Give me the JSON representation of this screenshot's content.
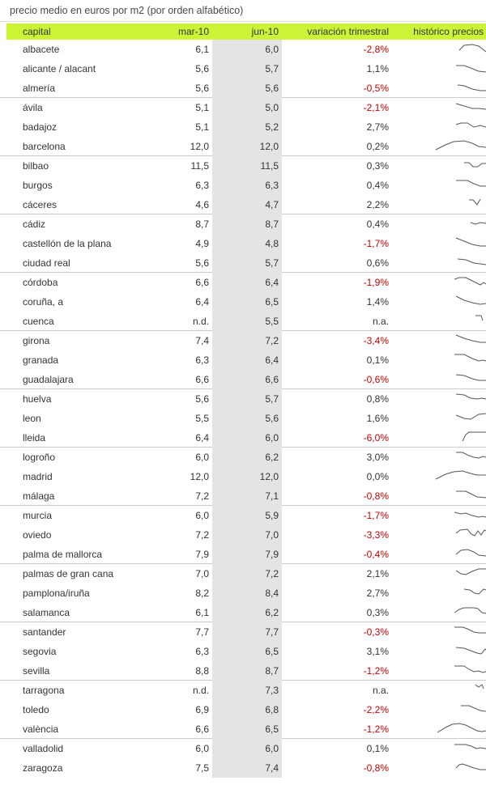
{
  "title": "precio medio en euros por m2 (por orden alfabético)",
  "colors": {
    "header_bg": "#ccf437",
    "stripe": "#e4e4e4",
    "negative": "#cc0000",
    "separator": "#cccccc",
    "spark": "#555555",
    "text": "#333333"
  },
  "chart_data": {
    "type": "table",
    "title": "precio medio en euros por m2 (por orden alfabético)",
    "columns": [
      "capital",
      "mar-10",
      "jun-10",
      "variación trimestral",
      "histórico precios"
    ],
    "group_size": 3,
    "rows": [
      {
        "capital": "albacete",
        "mar10": "6,1",
        "jun10": "6,0",
        "variacion": "-2,8%",
        "spark": [
          [
            62,
            13
          ],
          [
            68,
            7
          ],
          [
            78,
            6
          ],
          [
            86,
            8
          ],
          [
            95,
            15
          ]
        ]
      },
      {
        "capital": "alicante / alacant",
        "mar10": "5,6",
        "jun10": "5,7",
        "variacion": "1,1%",
        "spark": [
          [
            58,
            8
          ],
          [
            68,
            8
          ],
          [
            76,
            11
          ],
          [
            86,
            15
          ],
          [
            95,
            16
          ]
        ]
      },
      {
        "capital": "almería",
        "mar10": "5,6",
        "jun10": "5,6",
        "variacion": "-0,5%",
        "spark": [
          [
            60,
            8
          ],
          [
            68,
            9
          ],
          [
            78,
            13
          ],
          [
            88,
            15
          ],
          [
            95,
            15
          ]
        ]
      },
      {
        "capital": "ávila",
        "mar10": "5,1",
        "jun10": "5,0",
        "variacion": "-2,1%",
        "spark": [
          [
            58,
            7
          ],
          [
            68,
            10
          ],
          [
            78,
            13
          ],
          [
            86,
            13
          ],
          [
            95,
            14
          ]
        ]
      },
      {
        "capital": "badajoz",
        "mar10": "5,1",
        "jun10": "5,2",
        "variacion": "2,7%",
        "spark": [
          [
            58,
            9
          ],
          [
            64,
            7
          ],
          [
            72,
            7
          ],
          [
            80,
            12
          ],
          [
            88,
            10
          ],
          [
            95,
            12
          ]
        ]
      },
      {
        "capital": "barcelona",
        "mar10": "12,0",
        "jun10": "12,0",
        "variacion": "0,2%",
        "spark": [
          [
            33,
            16
          ],
          [
            45,
            10
          ],
          [
            55,
            6
          ],
          [
            68,
            5
          ],
          [
            78,
            8
          ],
          [
            86,
            12
          ],
          [
            95,
            13
          ]
        ]
      },
      {
        "capital": "bilbao",
        "mar10": "11,5",
        "jun10": "11,5",
        "variacion": "0,3%",
        "spark": [
          [
            68,
            8
          ],
          [
            74,
            8
          ],
          [
            79,
            13
          ],
          [
            85,
            13
          ],
          [
            90,
            9
          ],
          [
            95,
            9
          ]
        ]
      },
      {
        "capital": "burgos",
        "mar10": "6,3",
        "jun10": "6,3",
        "variacion": "0,4%",
        "spark": [
          [
            58,
            6
          ],
          [
            72,
            6
          ],
          [
            80,
            10
          ],
          [
            88,
            13
          ],
          [
            95,
            13
          ]
        ]
      },
      {
        "capital": "cáceres",
        "mar10": "4,6",
        "jun10": "4,7",
        "variacion": "2,2%",
        "spark": [
          [
            74,
            6
          ],
          [
            79,
            6
          ],
          [
            84,
            12
          ],
          [
            88,
            5
          ]
        ]
      },
      {
        "capital": "cádiz",
        "mar10": "8,7",
        "jun10": "8,7",
        "variacion": "0,4%",
        "spark": [
          [
            76,
            10
          ],
          [
            82,
            12
          ],
          [
            88,
            10
          ],
          [
            95,
            11
          ]
        ]
      },
      {
        "capital": "castellón de la plana",
        "mar10": "4,9",
        "jun10": "4,8",
        "variacion": "-1,7%",
        "spark": [
          [
            58,
            5
          ],
          [
            68,
            9
          ],
          [
            78,
            13
          ],
          [
            88,
            15
          ],
          [
            95,
            15
          ]
        ]
      },
      {
        "capital": "ciudad real",
        "mar10": "5,6",
        "jun10": "5,7",
        "variacion": "0,6%",
        "spark": [
          [
            60,
            7
          ],
          [
            70,
            8
          ],
          [
            80,
            12
          ],
          [
            88,
            13
          ],
          [
            95,
            14
          ]
        ]
      },
      {
        "capital": "córdoba",
        "mar10": "6,6",
        "jun10": "6,4",
        "variacion": "-1,9%",
        "spark": [
          [
            56,
            8
          ],
          [
            62,
            6
          ],
          [
            70,
            6
          ],
          [
            78,
            10
          ],
          [
            84,
            13
          ],
          [
            88,
            15
          ],
          [
            92,
            12
          ],
          [
            95,
            14
          ]
        ]
      },
      {
        "capital": "coruña, a",
        "mar10": "6,4",
        "jun10": "6,5",
        "variacion": "1,4%",
        "spark": [
          [
            58,
            5
          ],
          [
            68,
            10
          ],
          [
            78,
            13
          ],
          [
            88,
            15
          ],
          [
            95,
            14
          ]
        ]
      },
      {
        "capital": "cuenca",
        "mar10": "n.d.",
        "jun10": "5,5",
        "variacion": "n.a.",
        "spark": [
          [
            82,
            5
          ],
          [
            89,
            5
          ],
          [
            91,
            11
          ]
        ]
      },
      {
        "capital": "girona",
        "mar10": "7,4",
        "jun10": "7,2",
        "variacion": "-3,4%",
        "spark": [
          [
            58,
            5
          ],
          [
            68,
            9
          ],
          [
            78,
            12
          ],
          [
            88,
            14
          ],
          [
            95,
            14
          ]
        ]
      },
      {
        "capital": "granada",
        "mar10": "6,3",
        "jun10": "6,4",
        "variacion": "0,1%",
        "spark": [
          [
            56,
            5
          ],
          [
            68,
            5
          ],
          [
            78,
            10
          ],
          [
            86,
            13
          ],
          [
            91,
            12
          ],
          [
            95,
            13
          ]
        ]
      },
      {
        "capital": "guadalajara",
        "mar10": "6,6",
        "jun10": "6,6",
        "variacion": "-0,6%",
        "spark": [
          [
            58,
            6
          ],
          [
            68,
            7
          ],
          [
            78,
            11
          ],
          [
            86,
            13
          ],
          [
            95,
            13
          ]
        ]
      },
      {
        "capital": "huelva",
        "mar10": "5,6",
        "jun10": "5,7",
        "variacion": "0,8%",
        "spark": [
          [
            58,
            6
          ],
          [
            68,
            7
          ],
          [
            76,
            11
          ],
          [
            84,
            12
          ],
          [
            90,
            11
          ],
          [
            95,
            12
          ]
        ]
      },
      {
        "capital": "leon",
        "mar10": "5,5",
        "jun10": "5,6",
        "variacion": "1,6%",
        "spark": [
          [
            58,
            8
          ],
          [
            68,
            12
          ],
          [
            76,
            13
          ],
          [
            86,
            7
          ],
          [
            95,
            6
          ]
        ]
      },
      {
        "capital": "lleida",
        "mar10": "6,4",
        "jun10": "6,0",
        "variacion": "-6,0%",
        "spark": [
          [
            66,
            16
          ],
          [
            70,
            8
          ],
          [
            74,
            5
          ],
          [
            95,
            5
          ]
        ]
      },
      {
        "capital": "logroño",
        "mar10": "6,0",
        "jun10": "6,2",
        "variacion": "3,0%",
        "spark": [
          [
            58,
            6
          ],
          [
            66,
            6
          ],
          [
            74,
            10
          ],
          [
            80,
            12
          ],
          [
            86,
            13
          ],
          [
            91,
            11
          ],
          [
            95,
            12
          ]
        ]
      },
      {
        "capital": "madrid",
        "mar10": "12,0",
        "jun10": "12,0",
        "variacion": "0,0%",
        "spark": [
          [
            33,
            15
          ],
          [
            45,
            9
          ],
          [
            55,
            6
          ],
          [
            66,
            5
          ],
          [
            76,
            8
          ],
          [
            84,
            10
          ],
          [
            95,
            10
          ]
        ]
      },
      {
        "capital": "málaga",
        "mar10": "7,2",
        "jun10": "7,1",
        "variacion": "-0,8%",
        "spark": [
          [
            58,
            6
          ],
          [
            70,
            6
          ],
          [
            78,
            10
          ],
          [
            84,
            13
          ],
          [
            95,
            14
          ]
        ]
      },
      {
        "capital": "murcia",
        "mar10": "6,0",
        "jun10": "5,9",
        "variacion": "-1,7%",
        "spark": [
          [
            56,
            8
          ],
          [
            64,
            10
          ],
          [
            70,
            9
          ],
          [
            78,
            12
          ],
          [
            86,
            14
          ],
          [
            91,
            13
          ],
          [
            95,
            14
          ]
        ]
      },
      {
        "capital": "oviedo",
        "mar10": "7,2",
        "jun10": "7,0",
        "variacion": "-3,3%",
        "spark": [
          [
            58,
            10
          ],
          [
            63,
            6
          ],
          [
            72,
            5
          ],
          [
            77,
            11
          ],
          [
            81,
            13
          ],
          [
            85,
            7
          ],
          [
            89,
            12
          ],
          [
            93,
            6
          ],
          [
            95,
            7
          ]
        ]
      },
      {
        "capital": "palma de mallorca",
        "mar10": "7,9",
        "jun10": "7,9",
        "variacion": "-0,4%",
        "spark": [
          [
            58,
            12
          ],
          [
            64,
            7
          ],
          [
            72,
            6
          ],
          [
            80,
            9
          ],
          [
            86,
            13
          ],
          [
            95,
            14
          ]
        ]
      },
      {
        "capital": "palmas de gran cana",
        "mar10": "7,0",
        "jun10": "7,2",
        "variacion": "2,1%",
        "spark": [
          [
            58,
            8
          ],
          [
            64,
            12
          ],
          [
            70,
            13
          ],
          [
            78,
            9
          ],
          [
            86,
            6
          ],
          [
            95,
            6
          ]
        ]
      },
      {
        "capital": "pamplona/iruña",
        "mar10": "8,2",
        "jun10": "8,4",
        "variacion": "2,7%",
        "spark": [
          [
            68,
            7
          ],
          [
            75,
            8
          ],
          [
            81,
            12
          ],
          [
            86,
            13
          ],
          [
            92,
            7
          ],
          [
            95,
            8
          ]
        ]
      },
      {
        "capital": "salamanca",
        "mar10": "6,1",
        "jun10": "6,2",
        "variacion": "0,3%",
        "spark": [
          [
            56,
            12
          ],
          [
            62,
            8
          ],
          [
            68,
            6
          ],
          [
            80,
            6
          ],
          [
            85,
            7
          ],
          [
            90,
            12
          ],
          [
            95,
            13
          ]
        ]
      },
      {
        "capital": "santander",
        "mar10": "7,7",
        "jun10": "7,7",
        "variacion": "-0,3%",
        "spark": [
          [
            56,
            6
          ],
          [
            66,
            6
          ],
          [
            72,
            8
          ],
          [
            80,
            12
          ],
          [
            86,
            13
          ],
          [
            95,
            13
          ]
        ]
      },
      {
        "capital": "segovia",
        "mar10": "6,3",
        "jun10": "6,5",
        "variacion": "3,1%",
        "spark": [
          [
            58,
            7
          ],
          [
            68,
            8
          ],
          [
            76,
            11
          ],
          [
            84,
            14
          ],
          [
            89,
            15
          ],
          [
            94,
            9
          ],
          [
            95,
            10
          ]
        ]
      },
      {
        "capital": "sevilla",
        "mar10": "8,8",
        "jun10": "8,7",
        "variacion": "-1,2%",
        "spark": [
          [
            56,
            6
          ],
          [
            68,
            6
          ],
          [
            74,
            10
          ],
          [
            80,
            13
          ],
          [
            86,
            12
          ],
          [
            91,
            14
          ],
          [
            95,
            13
          ]
        ]
      },
      {
        "capital": "tarragona",
        "mar10": "n.d.",
        "jun10": "7,3",
        "variacion": "n.a.",
        "spark": [
          [
            82,
            5
          ],
          [
            86,
            8
          ],
          [
            90,
            5
          ],
          [
            92,
            10
          ]
        ]
      },
      {
        "capital": "toledo",
        "mar10": "6,9",
        "jun10": "6,8",
        "variacion": "-2,2%",
        "spark": [
          [
            64,
            7
          ],
          [
            74,
            7
          ],
          [
            81,
            10
          ],
          [
            88,
            13
          ],
          [
            95,
            14
          ]
        ]
      },
      {
        "capital": "valència",
        "mar10": "6,6",
        "jun10": "6,5",
        "variacion": "-1,2%",
        "spark": [
          [
            35,
            16
          ],
          [
            45,
            10
          ],
          [
            53,
            6
          ],
          [
            62,
            5
          ],
          [
            70,
            7
          ],
          [
            78,
            11
          ],
          [
            84,
            14
          ],
          [
            90,
            15
          ],
          [
            95,
            14
          ]
        ]
      },
      {
        "capital": "valladolid",
        "mar10": "6,0",
        "jun10": "6,0",
        "variacion": "0,1%",
        "spark": [
          [
            56,
            7
          ],
          [
            70,
            7
          ],
          [
            77,
            9
          ],
          [
            83,
            12
          ],
          [
            88,
            11
          ],
          [
            95,
            12
          ]
        ]
      },
      {
        "capital": "zaragoza",
        "mar10": "7,5",
        "jun10": "7,4",
        "variacion": "-0,8%",
        "spark": [
          [
            58,
            12
          ],
          [
            62,
            8
          ],
          [
            66,
            7
          ],
          [
            72,
            9
          ],
          [
            80,
            12
          ],
          [
            88,
            14
          ],
          [
            95,
            14
          ]
        ]
      }
    ]
  }
}
